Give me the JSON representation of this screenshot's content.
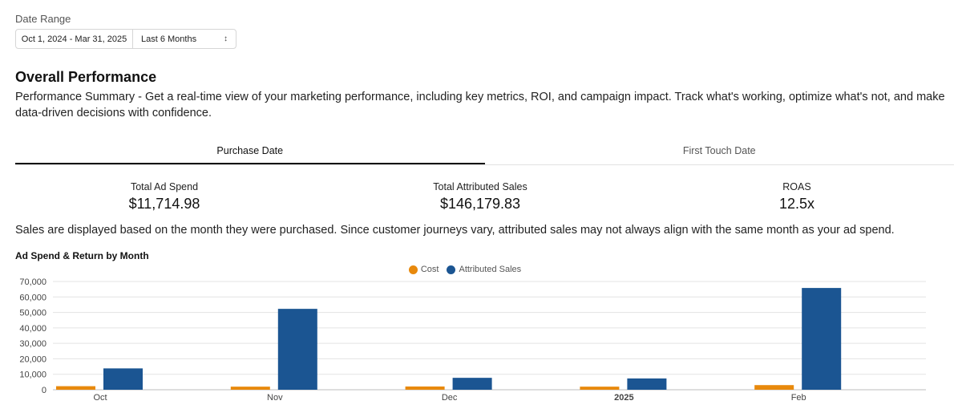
{
  "filters": {
    "date_range_label": "Date Range",
    "date_range_value": "Oct 1, 2024 - Mar 31, 2025",
    "preset_value": "Last 6 Months"
  },
  "performance": {
    "title": "Overall Performance",
    "description": "Performance Summary - Get a real-time view of your marketing performance, including key metrics, ROI, and campaign impact. Track what's working, optimize what's not, and make data-driven decisions with confidence."
  },
  "tabs": [
    {
      "label": "Purchase Date",
      "active": true
    },
    {
      "label": "First Touch Date",
      "active": false
    }
  ],
  "metrics": [
    {
      "label": "Total Ad Spend",
      "value": "$11,714.98"
    },
    {
      "label": "Total Attributed Sales",
      "value": "$146,179.83"
    },
    {
      "label": "ROAS",
      "value": "12.5x"
    }
  ],
  "note": "Sales are displayed based on the month they were purchased. Since customer journeys vary, attributed sales may not always align with the same month as your ad spend.",
  "chart_title": "Ad Spend & Return by Month",
  "chart_data": {
    "type": "bar",
    "title": "Ad Spend & Return by Month",
    "categories": [
      "Oct",
      "Nov",
      "Dec",
      "2025",
      "Feb"
    ],
    "series": [
      {
        "name": "Cost",
        "color": "#e8890c",
        "values": [
          2300,
          2000,
          2100,
          2000,
          3000
        ]
      },
      {
        "name": "Attributed Sales",
        "color": "#1b5592",
        "values": [
          13800,
          52300,
          7700,
          7300,
          65800
        ]
      }
    ],
    "ylim": [
      0,
      70000
    ],
    "yticks": [
      "0",
      "10,000",
      "20,000",
      "30,000",
      "40,000",
      "50,000",
      "60,000",
      "70,000"
    ],
    "grid": true,
    "legend_position": "top-center"
  }
}
